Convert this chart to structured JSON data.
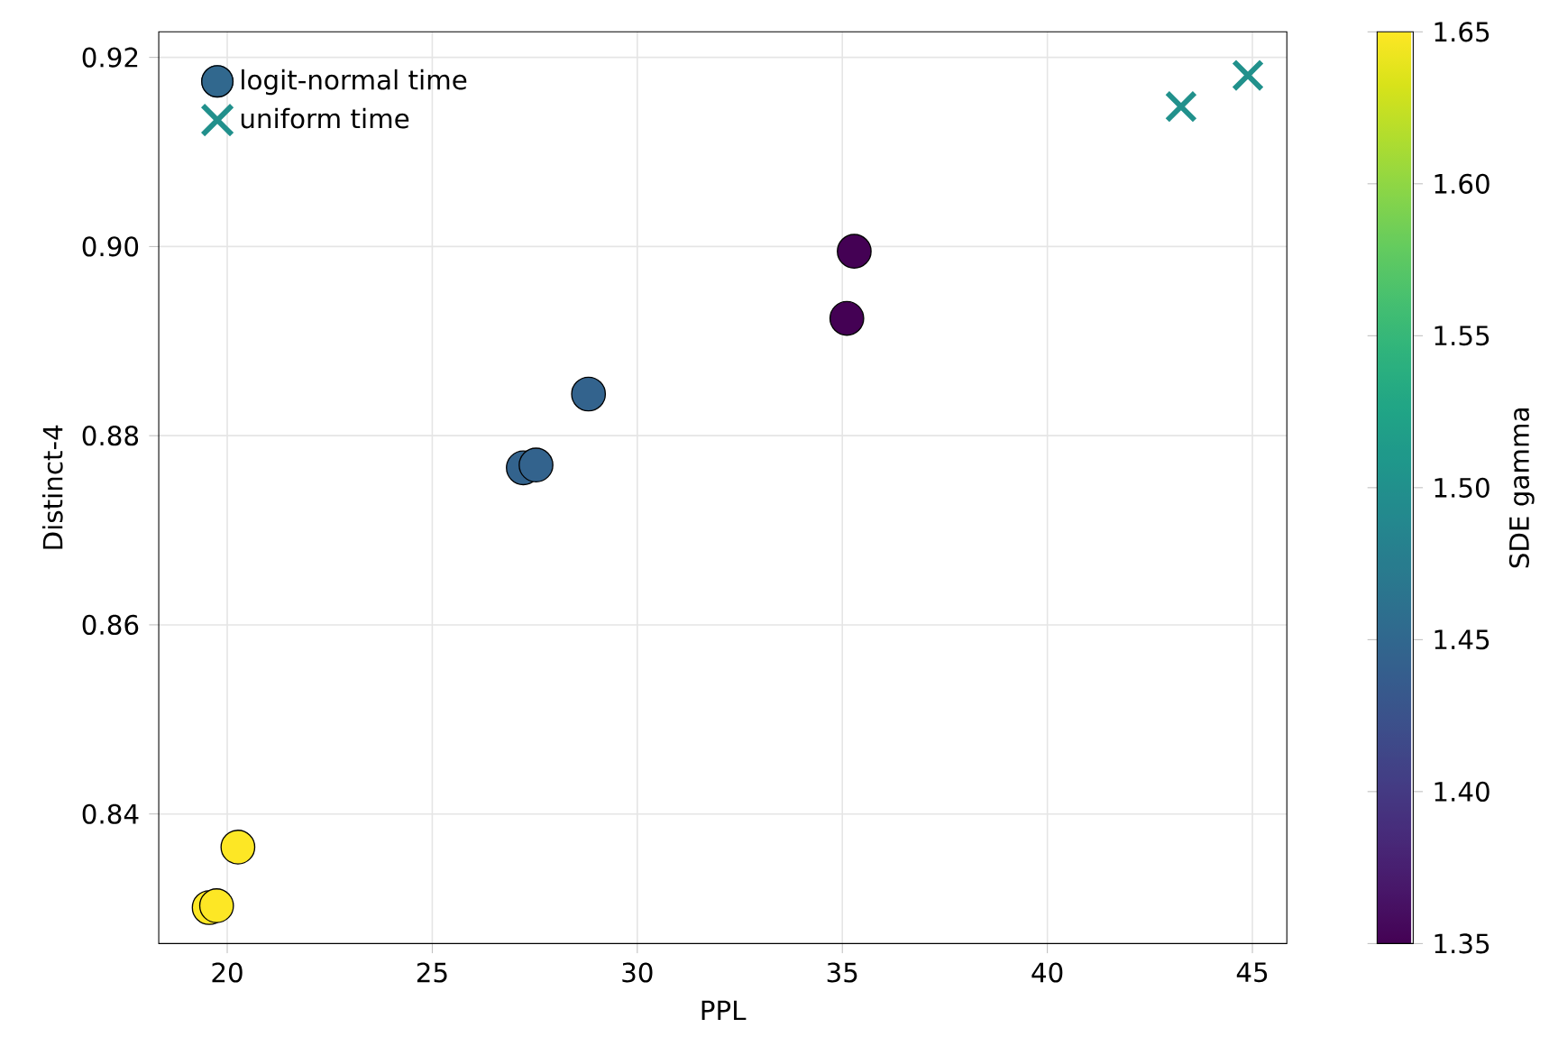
{
  "chart_data": {
    "type": "scatter",
    "xlabel": "PPL",
    "ylabel": "Distinct-4",
    "clabel": "SDE gamma",
    "xlim": [
      18.33,
      45.84
    ],
    "ylim": [
      0.8263,
      0.9227
    ],
    "xticks": [
      20,
      25,
      30,
      35,
      40,
      45
    ],
    "yticks": [
      {
        "value": 0.84,
        "label": "0.84"
      },
      {
        "value": 0.86,
        "label": "0.86"
      },
      {
        "value": 0.88,
        "label": "0.88"
      },
      {
        "value": 0.9,
        "label": "0.90"
      },
      {
        "value": 0.92,
        "label": "0.92"
      }
    ],
    "clim": [
      1.35,
      1.65
    ],
    "cticks": [
      {
        "value": 1.35,
        "label": "1.35"
      },
      {
        "value": 1.4,
        "label": "1.40"
      },
      {
        "value": 1.45,
        "label": "1.45"
      },
      {
        "value": 1.5,
        "label": "1.50"
      },
      {
        "value": 1.55,
        "label": "1.55"
      },
      {
        "value": 1.6,
        "label": "1.60"
      },
      {
        "value": 1.65,
        "label": "1.65"
      }
    ],
    "grid": true,
    "legend": "top left",
    "series": [
      {
        "name": "logit-normal time",
        "marker": "circle",
        "colors": [
          "#fde725",
          "#fde725",
          "#fde725",
          "#33638d",
          "#33638d",
          "#33638d",
          "#440154",
          "#440154"
        ],
        "x": [
          19.56,
          19.74,
          20.26,
          27.22,
          27.53,
          28.81,
          35.11,
          35.29
        ],
        "values": [
          0.8301,
          0.8303,
          0.8365,
          0.8766,
          0.8769,
          0.8844,
          0.8924,
          0.8995
        ],
        "cvalues": [
          1.65,
          1.65,
          1.65,
          1.45,
          1.45,
          1.45,
          1.35,
          1.35
        ]
      },
      {
        "name": "uniform time",
        "marker": "cross",
        "colors": [
          "#21918c",
          "#21918c"
        ],
        "x": [
          43.26,
          44.89
        ],
        "values": [
          0.9148,
          0.9181
        ],
        "cvalues": [
          1.5,
          1.5
        ]
      }
    ]
  }
}
